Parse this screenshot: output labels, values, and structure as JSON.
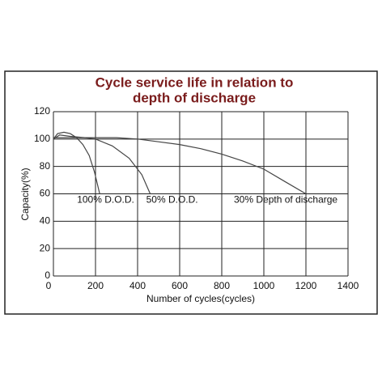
{
  "chart_data": {
    "type": "line",
    "title_lines": [
      "Cycle service life in relation to",
      "depth of discharge"
    ],
    "xlabel": "Number of cycles(cycles)",
    "ylabel": "Capacity(%)",
    "xlim": [
      0,
      1400
    ],
    "xticks": [
      0,
      200,
      400,
      600,
      800,
      1000,
      1200,
      1400
    ],
    "ylim": [
      0,
      120
    ],
    "yticks": [
      0,
      20,
      40,
      60,
      80,
      100,
      120
    ],
    "grid": true,
    "series": [
      {
        "name": "100% D.O.D.",
        "color": "#444444",
        "x": [
          0,
          20,
          50,
          80,
          110,
          140,
          170,
          195,
          220
        ],
        "values": [
          100,
          104,
          105,
          104,
          101,
          96,
          88,
          76,
          60
        ]
      },
      {
        "name": "50% D.O.D.",
        "color": "#444444",
        "x": [
          0,
          30,
          80,
          150,
          200,
          280,
          360,
          420,
          460
        ],
        "values": [
          100,
          103,
          102,
          101,
          100,
          95,
          86,
          74,
          60
        ]
      },
      {
        "name": "30% Depth of discharge",
        "color": "#444444",
        "x": [
          0,
          150,
          300,
          400,
          500,
          600,
          700,
          800,
          900,
          1000,
          1100,
          1200
        ],
        "values": [
          101,
          101,
          101,
          100,
          98,
          96,
          93,
          89,
          84,
          78,
          69,
          60
        ]
      }
    ]
  }
}
